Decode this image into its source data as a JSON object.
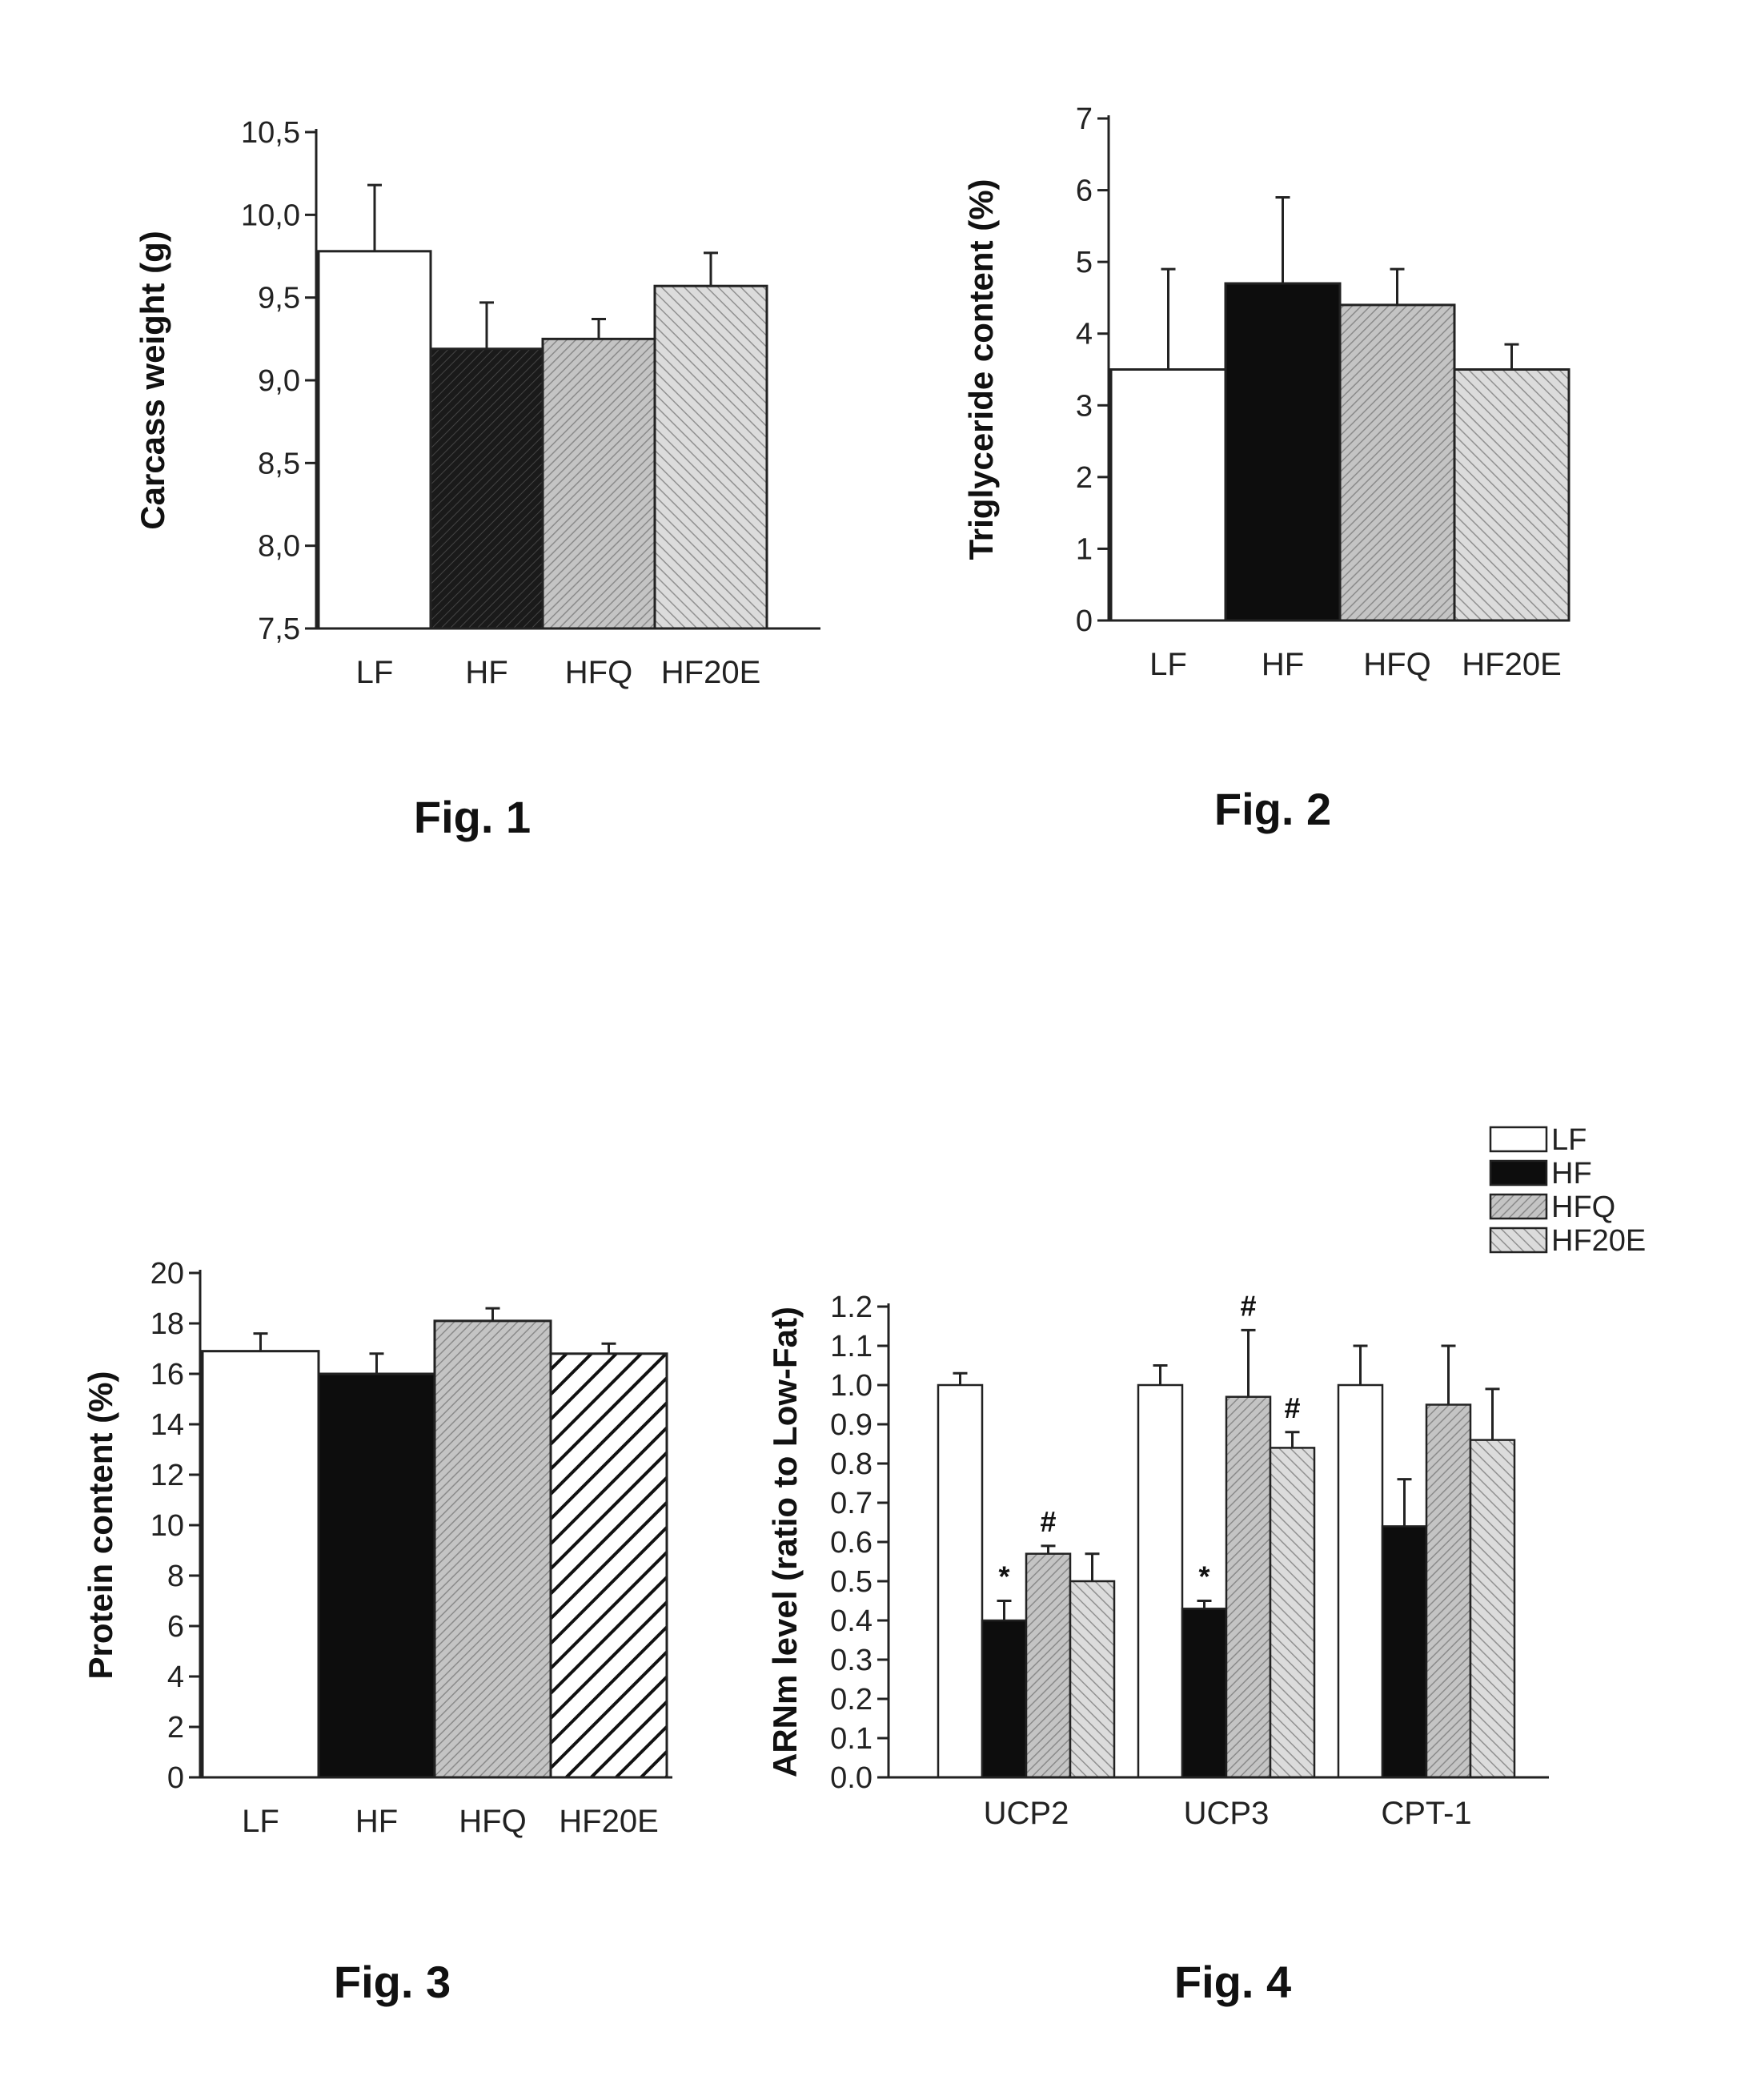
{
  "colors": {
    "LF": "#ffffff",
    "HF": "#111111",
    "HFQ": "#bdbdbd",
    "HF20E": "#d4d4d4",
    "axis": "#222222"
  },
  "chart_data": [
    {
      "id": "fig1",
      "caption": "Fig. 1",
      "type": "bar",
      "ylabel": "Carcass weight (g)",
      "ylim": [
        7.5,
        10.5
      ],
      "yticks": [
        "7,5",
        "8,0",
        "8,5",
        "9,0",
        "9,5",
        "10,0",
        "10,5"
      ],
      "ytick_values": [
        7.5,
        8.0,
        8.5,
        9.0,
        9.5,
        10.0,
        10.5
      ],
      "categories": [
        "LF",
        "HF",
        "HFQ",
        "HF20E"
      ],
      "values": [
        9.78,
        9.19,
        9.25,
        9.57
      ],
      "errors": [
        0.4,
        0.28,
        0.12,
        0.2
      ],
      "grid": false
    },
    {
      "id": "fig2",
      "caption": "Fig. 2",
      "type": "bar",
      "ylabel": "Triglyceride content (%)",
      "ylim": [
        0,
        7
      ],
      "yticks": [
        "0",
        "1",
        "2",
        "3",
        "4",
        "5",
        "6",
        "7"
      ],
      "ytick_values": [
        0,
        1,
        2,
        3,
        4,
        5,
        6,
        7
      ],
      "categories": [
        "LF",
        "HF",
        "HFQ",
        "HF20E"
      ],
      "values": [
        3.5,
        4.7,
        4.4,
        3.5
      ],
      "errors": [
        1.4,
        1.2,
        0.5,
        0.35
      ],
      "grid": false
    },
    {
      "id": "fig3",
      "caption": "Fig. 3",
      "type": "bar",
      "ylabel": "Protein content (%)",
      "ylim": [
        0,
        20
      ],
      "yticks": [
        "0",
        "2",
        "4",
        "6",
        "8",
        "10",
        "12",
        "14",
        "16",
        "18",
        "20"
      ],
      "ytick_values": [
        0,
        2,
        4,
        6,
        8,
        10,
        12,
        14,
        16,
        18,
        20
      ],
      "categories": [
        "LF",
        "HF",
        "HFQ",
        "HF20E"
      ],
      "values": [
        16.9,
        16.0,
        18.1,
        16.8
      ],
      "errors": [
        0.7,
        0.8,
        0.5,
        0.4
      ],
      "grid": false
    },
    {
      "id": "fig4",
      "caption": "Fig. 4",
      "type": "bar",
      "ylabel": "ARNm level (ratio to Low-Fat)",
      "ylim": [
        0,
        1.2
      ],
      "yticks": [
        "0.0",
        "0.1",
        "0.2",
        "0.3",
        "0.4",
        "0.5",
        "0.6",
        "0.7",
        "0.8",
        "0.9",
        "1.0",
        "1.1",
        "1.2"
      ],
      "ytick_values": [
        0,
        0.1,
        0.2,
        0.3,
        0.4,
        0.5,
        0.6,
        0.7,
        0.8,
        0.9,
        1.0,
        1.1,
        1.2
      ],
      "categories": [
        "UCP2",
        "UCP3",
        "CPT-1"
      ],
      "legend": [
        "LF",
        "HF",
        "HFQ",
        "HF20E"
      ],
      "legend_position": "top-right",
      "series": [
        {
          "name": "LF",
          "values": [
            1.0,
            1.0,
            1.0
          ],
          "errors": [
            0.03,
            0.05,
            0.1
          ],
          "marks": [
            "",
            "",
            ""
          ]
        },
        {
          "name": "HF",
          "values": [
            0.4,
            0.43,
            0.64
          ],
          "errors": [
            0.05,
            0.02,
            0.12
          ],
          "marks": [
            "*",
            "*",
            ""
          ]
        },
        {
          "name": "HFQ",
          "values": [
            0.57,
            0.97,
            0.95
          ],
          "errors": [
            0.02,
            0.17,
            0.15
          ],
          "marks": [
            "#",
            "#",
            ""
          ]
        },
        {
          "name": "HF20E",
          "values": [
            0.5,
            0.84,
            0.86
          ],
          "errors": [
            0.07,
            0.04,
            0.13
          ],
          "marks": [
            "",
            "#",
            ""
          ]
        }
      ],
      "grid": false
    }
  ]
}
